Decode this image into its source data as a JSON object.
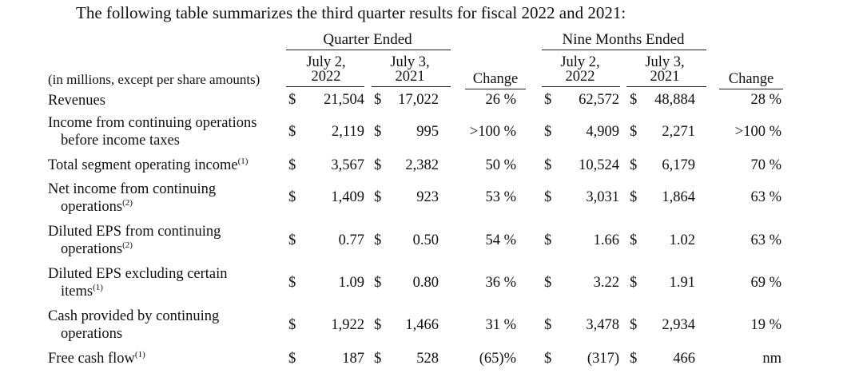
{
  "intro": "The following table summarizes the third quarter results for fiscal 2022 and 2021:",
  "headers": {
    "quarter_group": "Quarter Ended",
    "nine_group": "Nine Months Ended",
    "q_2022_line1": "July 2,",
    "q_2022_line2": "2022",
    "q_2021_line1": "July 3,",
    "q_2021_line2": "2021",
    "q_change": "Change",
    "n_2022_line1": "July 2,",
    "n_2022_line2": "2022",
    "n_2021_line1": "July 3,",
    "n_2021_line2": "2021",
    "n_change": "Change",
    "units": "(in millions, except per share amounts)"
  },
  "currency": "$",
  "rows": [
    {
      "label": "Revenues",
      "cont": "",
      "sup": "",
      "sup_cont": "",
      "q22": "21,504",
      "q21": "17,022",
      "qchg": "26 %",
      "n22": "62,572",
      "n21": "48,884",
      "nchg": "28 %"
    },
    {
      "label": "Income from continuing operations",
      "cont": "before income taxes",
      "sup": "",
      "sup_cont": "",
      "q22": "2,119",
      "q21": "995",
      "qchg": ">100 %",
      "n22": "4,909",
      "n21": "2,271",
      "nchg": ">100 %"
    },
    {
      "label": "Total segment operating income",
      "cont": "",
      "sup": "(1)",
      "sup_cont": "",
      "q22": "3,567",
      "q21": "2,382",
      "qchg": "50 %",
      "n22": "10,524",
      "n21": "6,179",
      "nchg": "70 %"
    },
    {
      "label": "Net income from continuing",
      "cont": "operations",
      "sup": "",
      "sup_cont": "(2)",
      "q22": "1,409",
      "q21": "923",
      "qchg": "53 %",
      "n22": "3,031",
      "n21": "1,864",
      "nchg": "63 %"
    },
    {
      "label": "Diluted EPS from continuing",
      "cont": "operations",
      "sup": "",
      "sup_cont": "(2)",
      "q22": "0.77",
      "q21": "0.50",
      "qchg": "54 %",
      "n22": "1.66",
      "n21": "1.02",
      "nchg": "63 %"
    },
    {
      "label": "Diluted EPS excluding certain",
      "cont": "items",
      "sup": "",
      "sup_cont": "(1)",
      "q22": "1.09",
      "q21": "0.80",
      "qchg": "36 %",
      "n22": "3.22",
      "n21": "1.91",
      "nchg": "69 %"
    },
    {
      "label": "Cash provided by continuing",
      "cont": "operations",
      "sup": "",
      "sup_cont": "",
      "q22": "1,922",
      "q21": "1,466",
      "qchg": "31 %",
      "n22": "3,478",
      "n21": "2,934",
      "nchg": "19 %"
    },
    {
      "label": "Free cash flow",
      "cont": "",
      "sup": "(1)",
      "sup_cont": "",
      "q22": "187",
      "q21": "528",
      "qchg": "(65)%",
      "n22": "(317)",
      "n21": "466",
      "nchg": "nm"
    }
  ]
}
